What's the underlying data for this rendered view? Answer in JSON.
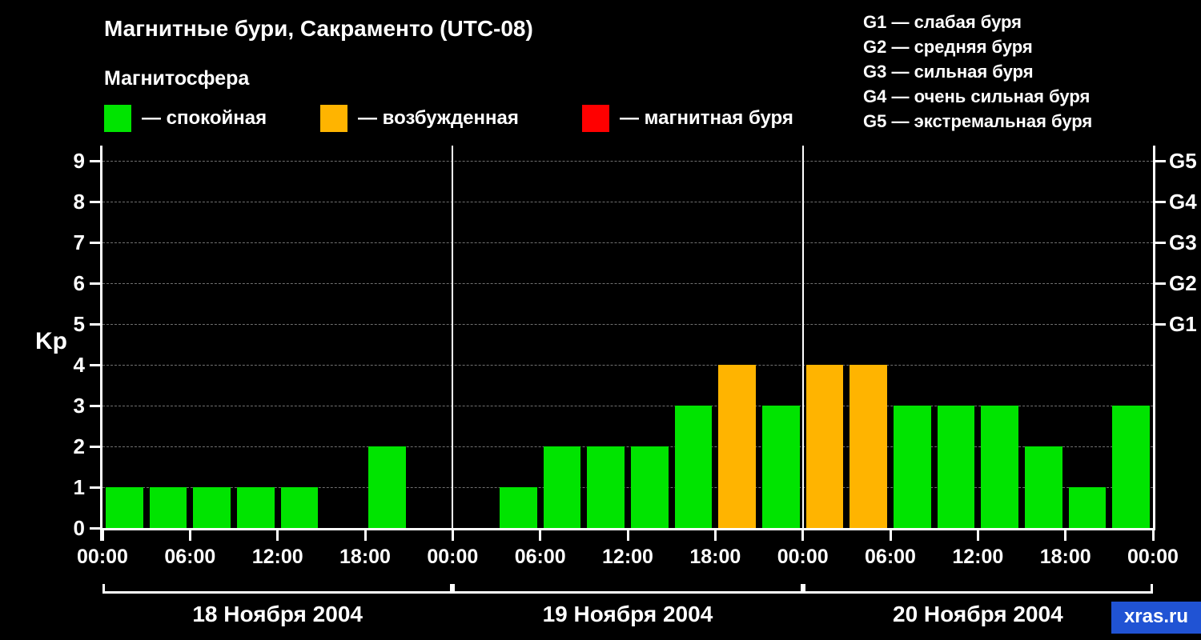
{
  "subtitle": "Магнитосфера",
  "watermark": "xras.ru",
  "watermark_bg": "#2053d4",
  "legend": [
    {
      "label": "— спокойная",
      "color": "#00e400"
    },
    {
      "label": "— возбужденная",
      "color": "#ffb400"
    },
    {
      "label": "— магнитная буря",
      "color": "#ff0000"
    }
  ],
  "storm_scale": [
    "G1 — слабая буря",
    "G2 — средняя буря",
    "G3 — сильная буря",
    "G4 — очень сильная буря",
    "G5 — экстремальная буря"
  ],
  "chart_data": {
    "type": "bar",
    "title": "Магнитные бури, Сакраменто (UTC-08)",
    "ylabel": "Kp",
    "ylim": [
      0,
      9.3
    ],
    "yticks": [
      0,
      1,
      2,
      3,
      4,
      5,
      6,
      7,
      8,
      9
    ],
    "grid": "dashed-horizontal",
    "interval_hours": 3,
    "x_tick_labels": [
      "00:00",
      "06:00",
      "12:00",
      "18:00",
      "00:00",
      "06:00",
      "12:00",
      "18:00",
      "00:00",
      "06:00",
      "12:00",
      "18:00",
      "00:00"
    ],
    "right_axis": [
      {
        "label": "G1",
        "kp": 5
      },
      {
        "label": "G2",
        "kp": 6
      },
      {
        "label": "G3",
        "kp": 7
      },
      {
        "label": "G4",
        "kp": 8
      },
      {
        "label": "G5",
        "kp": 9
      }
    ],
    "days": [
      {
        "date": "18 Ноября 2004",
        "values": [
          1,
          1,
          1,
          1,
          1,
          0,
          2,
          0
        ]
      },
      {
        "date": "19 Ноября 2004",
        "values": [
          0,
          1,
          2,
          2,
          2,
          3,
          4,
          3
        ]
      },
      {
        "date": "20 Ноября 2004",
        "values": [
          4,
          4,
          3,
          3,
          3,
          2,
          1,
          3
        ]
      }
    ],
    "color_rules": {
      "quiet_max": 3,
      "excited_max": 4,
      "quiet_color": "#00e400",
      "excited_color": "#ffb400",
      "storm_color": "#ff0000"
    }
  }
}
